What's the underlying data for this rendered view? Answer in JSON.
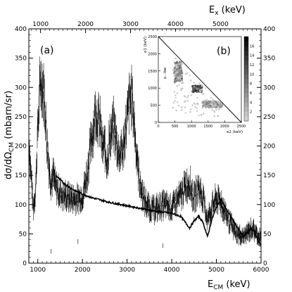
{
  "chart_data": [
    {
      "type": "line",
      "panel_label": "(a)",
      "xlabel": "E_CM (keV)",
      "ylabel": "dσ/dΩ_CM (mbarn/sr)",
      "x2label": "E_x (keV)",
      "xlim": [
        800,
        6000
      ],
      "ylim": [
        0,
        400
      ],
      "x2lim": [
        740,
        5900
      ],
      "xticks": [
        1000,
        2000,
        3000,
        4000,
        5000,
        6000
      ],
      "yticks": [
        0,
        50,
        100,
        150,
        200,
        250,
        300,
        350,
        400
      ],
      "x2ticks": [
        1000,
        2000,
        3000,
        4000,
        5000
      ],
      "grid": false,
      "series": [
        {
          "style": "data points with error bars",
          "color": "#000000",
          "x": [
            800,
            850,
            900,
            950,
            1000,
            1050,
            1100,
            1150,
            1200,
            1250,
            1300,
            1350,
            1400,
            1500,
            1600,
            1700,
            1800,
            1900,
            2000,
            2100,
            2200,
            2300,
            2400,
            2450,
            2500,
            2550,
            2600,
            2700,
            2800,
            2900,
            3000,
            3050,
            3100,
            3150,
            3200,
            3250,
            3300,
            3400,
            3500,
            3600,
            3700,
            3800,
            3900,
            4000,
            4100,
            4200,
            4300,
            4400,
            4450,
            4500,
            4600,
            4700,
            4800,
            4900,
            5000,
            5100,
            5200,
            5300,
            5400,
            5500,
            5600,
            5700,
            5800,
            5900,
            6000
          ],
          "y": [
            210,
            150,
            95,
            125,
            230,
            300,
            310,
            280,
            215,
            165,
            140,
            150,
            130,
            120,
            115,
            112,
            110,
            108,
            115,
            150,
            210,
            260,
            235,
            195,
            200,
            170,
            210,
            235,
            190,
            190,
            245,
            275,
            285,
            250,
            200,
            160,
            130,
            105,
            95,
            92,
            95,
            100,
            98,
            95,
            105,
            115,
            130,
            140,
            120,
            110,
            130,
            110,
            75,
            95,
            110,
            105,
            85,
            70,
            55,
            48,
            45,
            52,
            60,
            50,
            40
          ]
        },
        {
          "style": "solid curve",
          "color": "#000000",
          "x": [
            1400,
            1600,
            1800,
            2000,
            2200,
            2400,
            2600,
            2800,
            3000,
            3200,
            3400,
            3600,
            3800,
            4000,
            4200,
            4300,
            4400,
            4500,
            4600,
            4700,
            4800,
            4900,
            5000,
            5100,
            5200,
            5400,
            5600,
            5800,
            6000
          ],
          "y": [
            150,
            135,
            125,
            118,
            112,
            108,
            104,
            101,
            98,
            95,
            92,
            89,
            87,
            85,
            80,
            70,
            60,
            72,
            80,
            70,
            45,
            75,
            95,
            110,
            95,
            70,
            45,
            60,
            30
          ]
        }
      ]
    },
    {
      "type": "heatmap",
      "panel_label": "(b)",
      "xlabel": "e2 (keV)",
      "ylabel": "e1 (keV)",
      "xlim": [
        0,
        2500
      ],
      "ylim": [
        0,
        2500
      ],
      "xticks": [
        0,
        500,
        1000,
        1500,
        2000,
        2500
      ],
      "yticks": [
        0,
        500,
        1000,
        1500,
        2000,
        2500
      ],
      "colorbar_ticks": [
        2,
        4,
        6,
        8,
        10,
        12,
        14,
        16
      ],
      "colorbar_range": [
        0,
        18
      ],
      "diagonal_line": [
        [
          0,
          2500
        ],
        [
          2500,
          0
        ]
      ],
      "inner_label": "p...Vac",
      "clusters": [
        {
          "e2": [
            450,
            700
          ],
          "e1": [
            1200,
            1800
          ],
          "intensity": 8
        },
        {
          "e2": [
            1000,
            1300
          ],
          "e1": [
            900,
            1100
          ],
          "intensity": 12
        },
        {
          "e2": [
            1300,
            1900
          ],
          "e1": [
            450,
            650
          ],
          "intensity": 6
        },
        {
          "e2": [
            400,
            1900
          ],
          "e1": [
            200,
            1900
          ],
          "intensity": 1.5
        }
      ]
    }
  ]
}
